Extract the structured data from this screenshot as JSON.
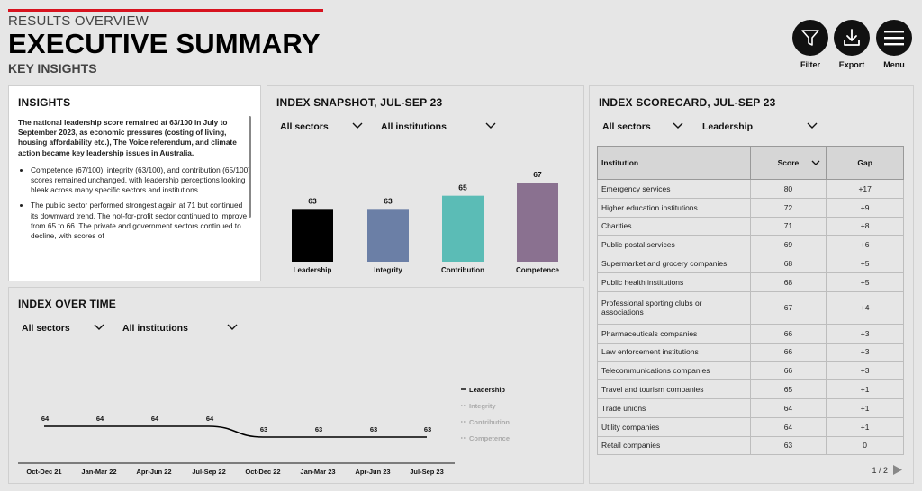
{
  "header": {
    "subtitle": "RESULTS OVERVIEW",
    "title": "EXECUTIVE SUMMARY",
    "section": "KEY INSIGHTS"
  },
  "toolbar": {
    "filter_label": "Filter",
    "export_label": "Export",
    "menu_label": "Menu"
  },
  "insights": {
    "title": "INSIGHTS",
    "lead": "The national leadership score remained at 63/100 in July to September 2023, as economic pressures (costing of living, housing affordability etc.), The Voice referendum, and climate action became key leadership issues in Australia.",
    "bullets": [
      "Competence (67/100), integrity (63/100), and contribution (65/100) scores remained unchanged, with leadership perceptions looking bleak across many specific sectors and institutions.",
      "The public sector performed strongest again at 71 but continued its downward trend. The not-for-profit sector continued to improve from 65 to 66. The private and government sectors continued to decline, with scores of"
    ]
  },
  "snapshot": {
    "title": "INDEX SNAPSHOT, JUL-SEP 23",
    "filter_sector": "All sectors",
    "filter_institution": "All institutions"
  },
  "over_time": {
    "title": "INDEX OVER TIME",
    "filter_sector": "All sectors",
    "filter_institution": "All institutions"
  },
  "scorecard": {
    "title": "INDEX SCORECARD, JUL-SEP 23",
    "filter_sector": "All sectors",
    "filter_measure": "Leadership",
    "columns": [
      "Institution",
      "Score",
      "Gap"
    ],
    "rows": [
      [
        "Emergency services",
        "80",
        "+17"
      ],
      [
        "Higher education institutions",
        "72",
        "+9"
      ],
      [
        "Charities",
        "71",
        "+8"
      ],
      [
        "Public postal services",
        "69",
        "+6"
      ],
      [
        "Supermarket and grocery companies",
        "68",
        "+5"
      ],
      [
        "Public health institutions",
        "68",
        "+5"
      ],
      [
        "Professional sporting clubs or associations",
        "67",
        "+4"
      ],
      [
        "Pharmaceuticals companies",
        "66",
        "+3"
      ],
      [
        "Law enforcement institutions",
        "66",
        "+3"
      ],
      [
        "Telecommunications companies",
        "66",
        "+3"
      ],
      [
        "Travel and tourism companies",
        "65",
        "+1"
      ],
      [
        "Trade unions",
        "64",
        "+1"
      ],
      [
        "Utility companies",
        "64",
        "+1"
      ],
      [
        "Retail companies",
        "63",
        "0"
      ]
    ],
    "page": "1 / 2"
  },
  "chart_data": [
    {
      "type": "bar",
      "categories": [
        "Leadership",
        "Integrity",
        "Contribution",
        "Competence"
      ],
      "values": [
        63,
        63,
        65,
        67
      ],
      "colors": [
        "#000000",
        "#6b7fa6",
        "#5bbcb6",
        "#8a7190"
      ],
      "ylim": [
        55,
        70
      ]
    },
    {
      "type": "line",
      "x": [
        "Oct-Dec 21",
        "Jan-Mar 22",
        "Apr-Jun 22",
        "Jul-Sep 22",
        "Oct-Dec 22",
        "Jan-Mar 23",
        "Apr-Jun 23",
        "Jul-Sep 23"
      ],
      "series": [
        {
          "name": "Leadership",
          "values": [
            64,
            64,
            64,
            64,
            63,
            63,
            63,
            63
          ],
          "color": "#000000"
        }
      ],
      "legend": [
        "Leadership",
        "Integrity",
        "Contribution",
        "Competence"
      ],
      "legend_position": "right"
    }
  ]
}
